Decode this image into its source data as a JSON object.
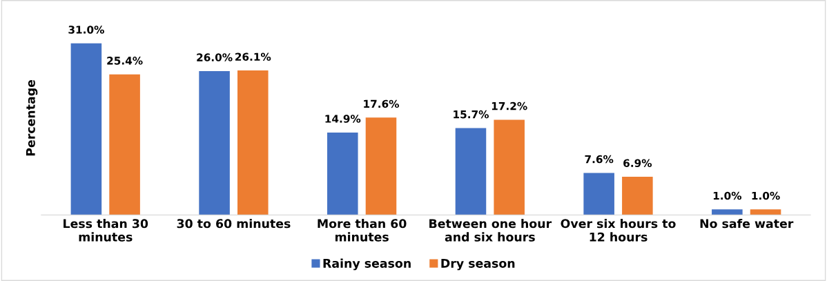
{
  "chart_data": {
    "type": "bar",
    "ylabel": "Percentage",
    "categories": [
      "Less than 30 minutes",
      "30 to 60 minutes",
      "More than 60 minutes",
      "Between one hour and six hours",
      "Over six hours to 12 hours",
      "No safe water"
    ],
    "series": [
      {
        "name": "Rainy season",
        "color": "#4472c4",
        "values": [
          31.0,
          26.0,
          14.9,
          15.7,
          7.6,
          1.0
        ],
        "value_labels": [
          "31.0%",
          "26.0%",
          "14.9%",
          "15.7%",
          "7.6%",
          "1.0%"
        ]
      },
      {
        "name": "Dry season",
        "color": "#ed7d31",
        "values": [
          25.4,
          26.1,
          17.6,
          17.2,
          6.9,
          1.0
        ],
        "value_labels": [
          "25.4%",
          "26.1%",
          "17.6%",
          "17.2%",
          "6.9%",
          "1.0%"
        ]
      }
    ],
    "legend": "bottom",
    "grid": false
  }
}
